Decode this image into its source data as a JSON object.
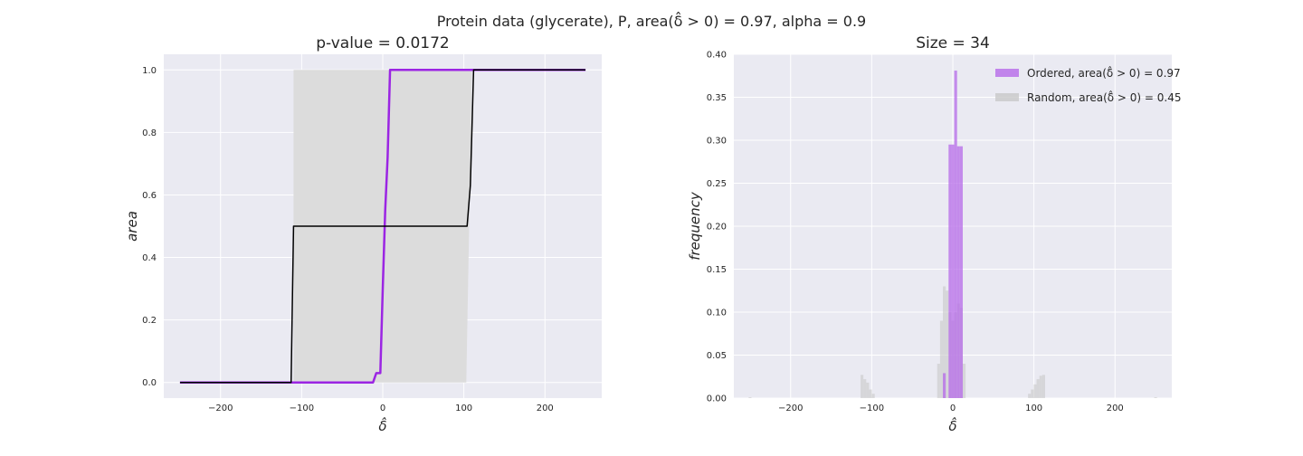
{
  "figure": {
    "suptitle": "Protein data (glycerate), P, area(δ̂ > 0) = 0.97, alpha = 0.9"
  },
  "chart_data": [
    {
      "type": "line",
      "title": "p-value = 0.0172",
      "xlabel": "δ̂",
      "ylabel": "area",
      "xlim": [
        -270,
        270
      ],
      "ylim": [
        -0.05,
        1.05
      ],
      "xticks": [
        -200,
        -100,
        0,
        100,
        200
      ],
      "yticks": [
        0.0,
        0.2,
        0.4,
        0.6,
        0.8,
        1.0
      ],
      "grid": true,
      "band": {
        "color": "#dcdcdc",
        "lower": [
          [
            -250,
            0
          ],
          [
            103,
            0
          ],
          [
            110,
            1.0
          ],
          [
            250,
            1.0
          ]
        ],
        "upper": [
          [
            -110,
            0.0
          ],
          [
            -110,
            1.0
          ],
          [
            250,
            1.0
          ]
        ]
      },
      "series": [
        {
          "color": "#9b25e3",
          "width": 2.5,
          "points": [
            [
              -250,
              0
            ],
            [
              -12,
              0
            ],
            [
              -8,
              0.03
            ],
            [
              -3,
              0.03
            ],
            [
              0,
              0.3
            ],
            [
              3,
              0.55
            ],
            [
              6,
              0.72
            ],
            [
              9,
              1.0
            ],
            [
              250,
              1.0
            ]
          ]
        },
        {
          "color": "#000000",
          "width": 1.5,
          "points": [
            [
              -250,
              0
            ],
            [
              -113,
              0
            ],
            [
              -110,
              0.5
            ],
            [
              104,
              0.5
            ],
            [
              108,
              0.63
            ],
            [
              112,
              1.0
            ],
            [
              250,
              1.0
            ]
          ]
        }
      ]
    },
    {
      "type": "bar",
      "title": "Size = 34",
      "xlabel": "δ̂",
      "ylabel": "frequency",
      "xlim": [
        -270,
        270
      ],
      "ylim": [
        0,
        0.4
      ],
      "xticks": [
        -200,
        -100,
        0,
        100,
        200
      ],
      "yticks": [
        0.0,
        0.05,
        0.1,
        0.15,
        0.2,
        0.25,
        0.3,
        0.35,
        0.4
      ],
      "grid": true,
      "legend": "top-right",
      "series": [
        {
          "name": "Random, area(δ̂ > 0) = 0.45",
          "color": "#c8c8c8",
          "opacity": 0.6,
          "bin_width": 3.5,
          "bins": [
            {
              "x": -250,
              "y": 0.001
            },
            {
              "x": -112,
              "y": 0.027
            },
            {
              "x": -108.5,
              "y": 0.022
            },
            {
              "x": -105,
              "y": 0.018
            },
            {
              "x": -101.5,
              "y": 0.01
            },
            {
              "x": -98,
              "y": 0.005
            },
            {
              "x": -17.5,
              "y": 0.04
            },
            {
              "x": -14,
              "y": 0.09
            },
            {
              "x": -10.5,
              "y": 0.13
            },
            {
              "x": -7,
              "y": 0.125
            },
            {
              "x": -3.5,
              "y": 0.1
            },
            {
              "x": 0,
              "y": 0.09
            },
            {
              "x": 3.5,
              "y": 0.1
            },
            {
              "x": 7,
              "y": 0.11
            },
            {
              "x": 10.5,
              "y": 0.105
            },
            {
              "x": 14,
              "y": 0.04
            },
            {
              "x": 94.5,
              "y": 0.005
            },
            {
              "x": 98,
              "y": 0.01
            },
            {
              "x": 101.5,
              "y": 0.016
            },
            {
              "x": 105,
              "y": 0.022
            },
            {
              "x": 108.5,
              "y": 0.026
            },
            {
              "x": 112,
              "y": 0.027
            },
            {
              "x": 250,
              "y": 0.001
            }
          ]
        },
        {
          "name": "Ordered, area(δ̂ > 0) = 0.97",
          "color": "#b66ae8",
          "opacity": 0.75,
          "bin_width": 3.5,
          "bins": [
            {
              "x": -10.5,
              "y": 0.029
            },
            {
              "x": -3.5,
              "y": 0.295
            },
            {
              "x": 0,
              "y": 0.295
            },
            {
              "x": 3.5,
              "y": 0.381
            },
            {
              "x": 7,
              "y": 0.293
            },
            {
              "x": 10.5,
              "y": 0.293
            }
          ]
        }
      ],
      "legend_entries": [
        {
          "label": "Ordered, area(δ̂ > 0) = 0.97",
          "color": "#b66ae8"
        },
        {
          "label": "Random, area(δ̂ > 0) = 0.45",
          "color": "#c8c8c8"
        }
      ]
    }
  ]
}
